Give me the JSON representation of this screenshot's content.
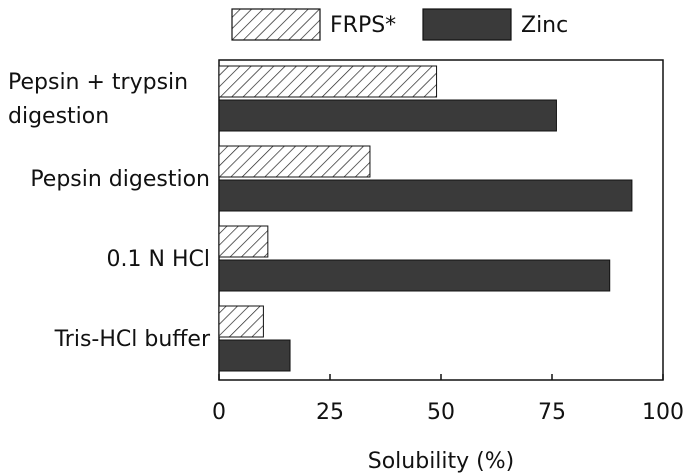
{
  "chart_data": {
    "type": "hbar",
    "xlabel": "Solubility (%)",
    "categories": [
      "Pepsin + trypsin digestion",
      "Pepsin digestion",
      "0.1 N HCl",
      "Tris-HCl buffer"
    ],
    "series": [
      {
        "name": "FRPS*",
        "color": "#ffffff",
        "hatch": true,
        "values": [
          49,
          34,
          11,
          10
        ]
      },
      {
        "name": "Zinc",
        "color": "#3a3a3a",
        "hatch": false,
        "values": [
          76,
          93,
          88,
          16
        ]
      }
    ],
    "xlim": [
      0,
      100
    ],
    "xticks": [
      0,
      25,
      50,
      75,
      100
    ]
  }
}
